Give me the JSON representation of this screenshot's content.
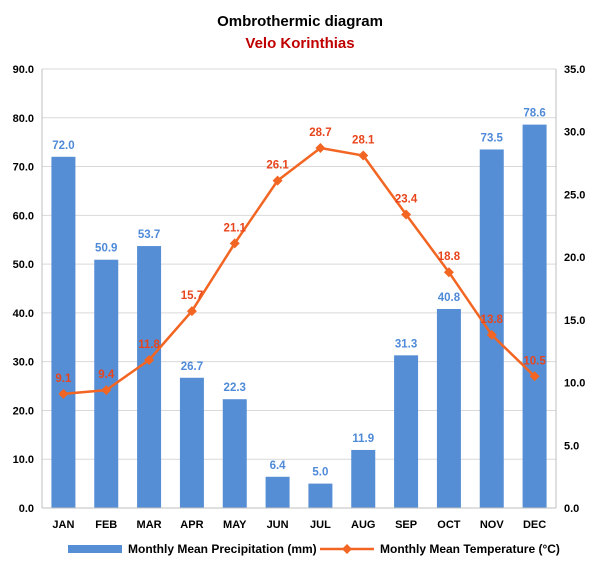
{
  "chart_data": {
    "type": "bar+line",
    "title": "Ombrothermic diagram",
    "subtitle": "Velo Korinthias",
    "categories": [
      "JAN",
      "FEB",
      "MAR",
      "APR",
      "MAY",
      "JUN",
      "JUL",
      "AUG",
      "SEP",
      "OCT",
      "NOV",
      "DEC"
    ],
    "series": [
      {
        "name": "Monthly Mean Precipitation (mm)",
        "type": "bar",
        "axis": "left",
        "values": [
          72.0,
          50.9,
          53.7,
          26.7,
          22.3,
          6.4,
          5.0,
          11.9,
          31.3,
          40.8,
          73.5,
          78.6
        ],
        "color": "#558ed5"
      },
      {
        "name": "Monthly Mean Temperature (°C)",
        "type": "line",
        "axis": "right",
        "values": [
          9.1,
          9.4,
          11.8,
          15.7,
          21.1,
          26.1,
          28.7,
          28.1,
          23.4,
          18.8,
          13.8,
          10.5
        ],
        "color": "#f26522"
      }
    ],
    "y_left": {
      "min": 0,
      "max": 90,
      "step": 10,
      "decimals": 1
    },
    "y_right": {
      "min": 0,
      "max": 35,
      "step": 5,
      "decimals": 1
    },
    "grid": true,
    "legend_position": "bottom",
    "bar_label_color": "#4f8ad8",
    "line_label_color": "#e8451d"
  }
}
